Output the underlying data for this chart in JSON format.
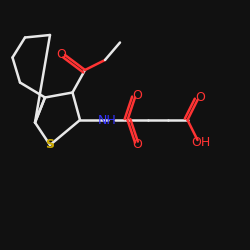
{
  "background": "#111111",
  "bond_color": "#e8e8e8",
  "O_color": "#ff3333",
  "N_color": "#3333ff",
  "S_color": "#ccaa00",
  "lw": 1.8,
  "xlim": [
    0,
    10
  ],
  "ylim": [
    0,
    10
  ],
  "figsize": [
    2.5,
    2.5
  ],
  "dpi": 100
}
